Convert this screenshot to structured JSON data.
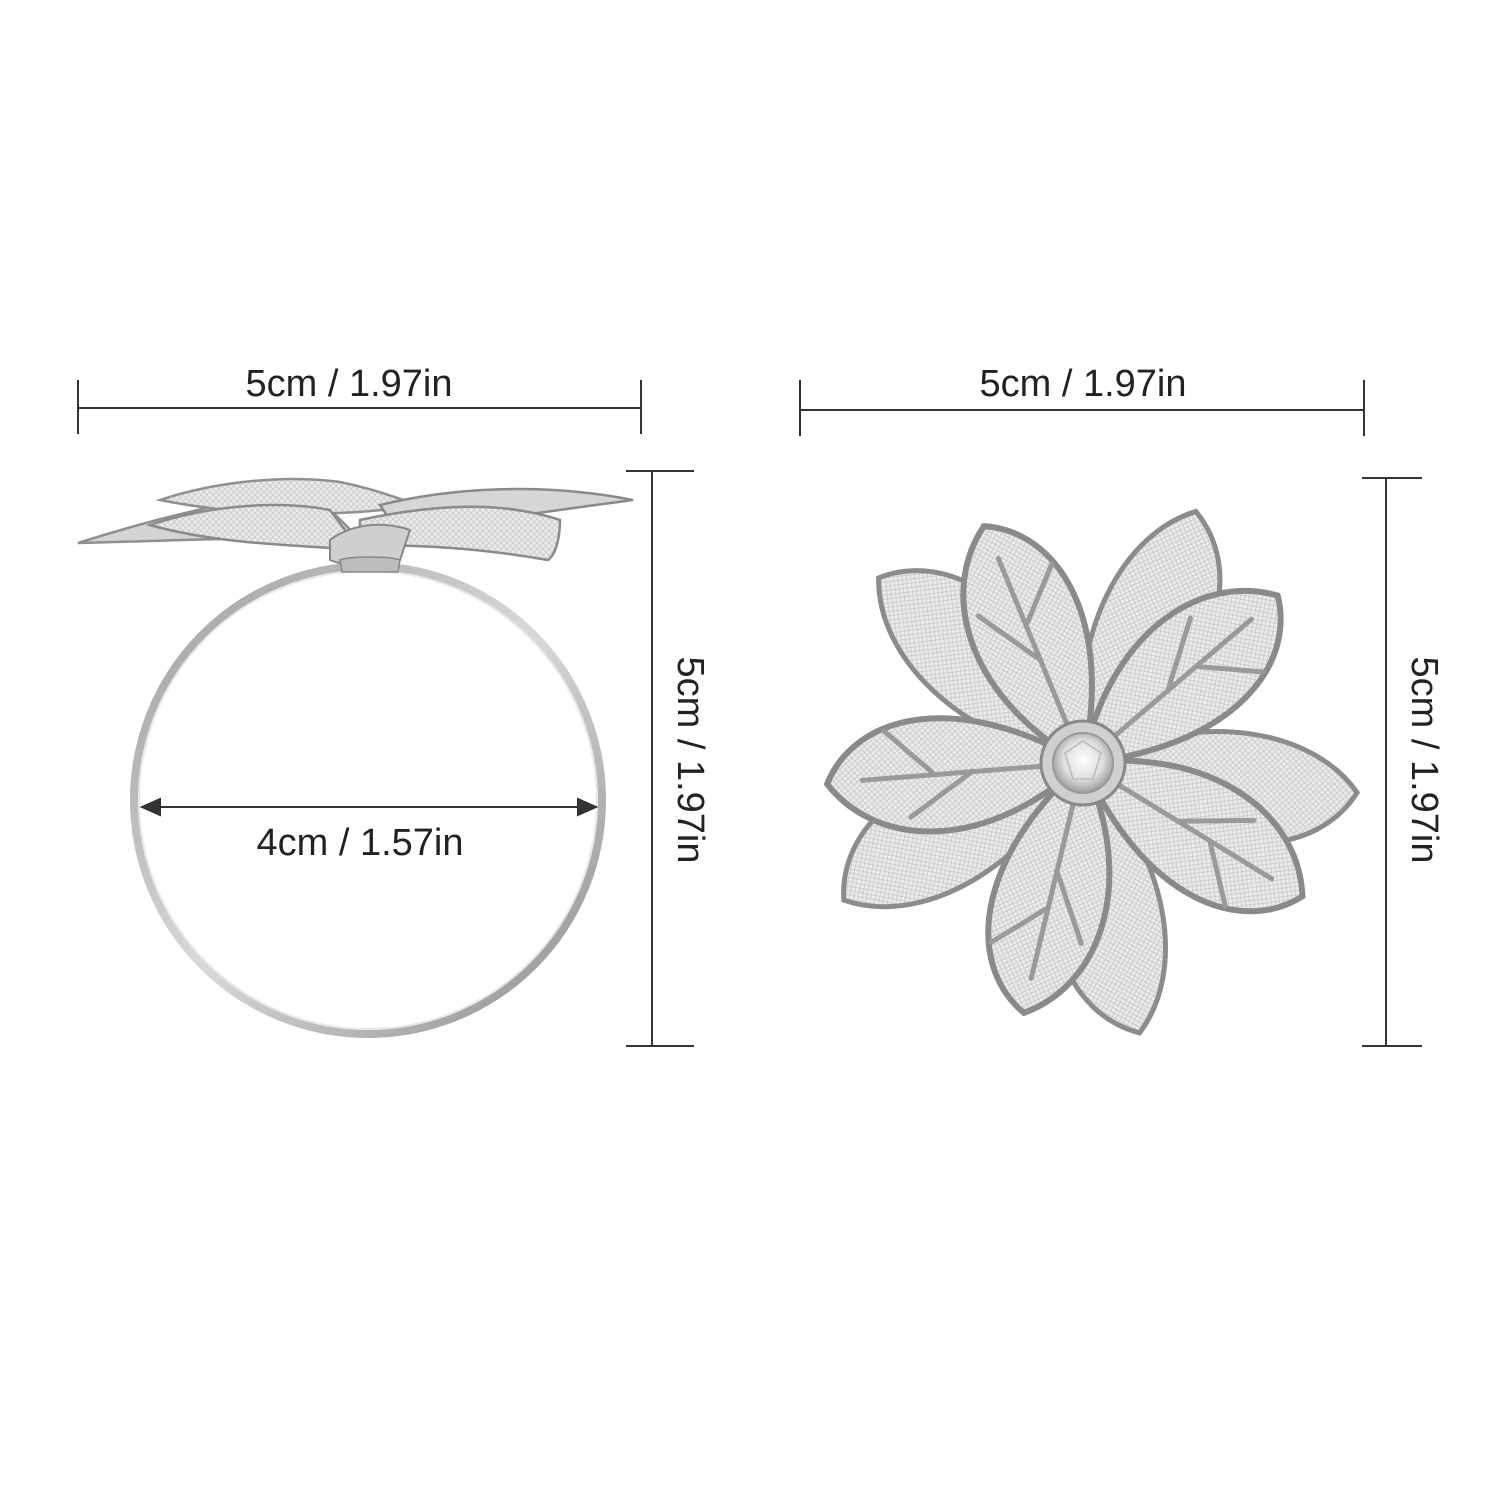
{
  "colors": {
    "background": "#ffffff",
    "dimension_line": "#333333",
    "metal_dark": "#8a8a8a",
    "metal_mid": "#c4c4c4",
    "metal_light": "#ececec",
    "mesh": "#e2e2e2",
    "gem": "#f4f4f4"
  },
  "left_view": {
    "width_label": "5cm / 1.97in",
    "height_label": "5cm / 1.97in",
    "inner_diameter_label": "4cm / 1.57in"
  },
  "right_view": {
    "width_label": "5cm / 1.97in",
    "height_label": "5cm / 1.97in"
  },
  "images": {
    "ring_side": "silver-napkin-ring-side-view",
    "flower_top": "silver-poinsettia-flower-top-view"
  }
}
